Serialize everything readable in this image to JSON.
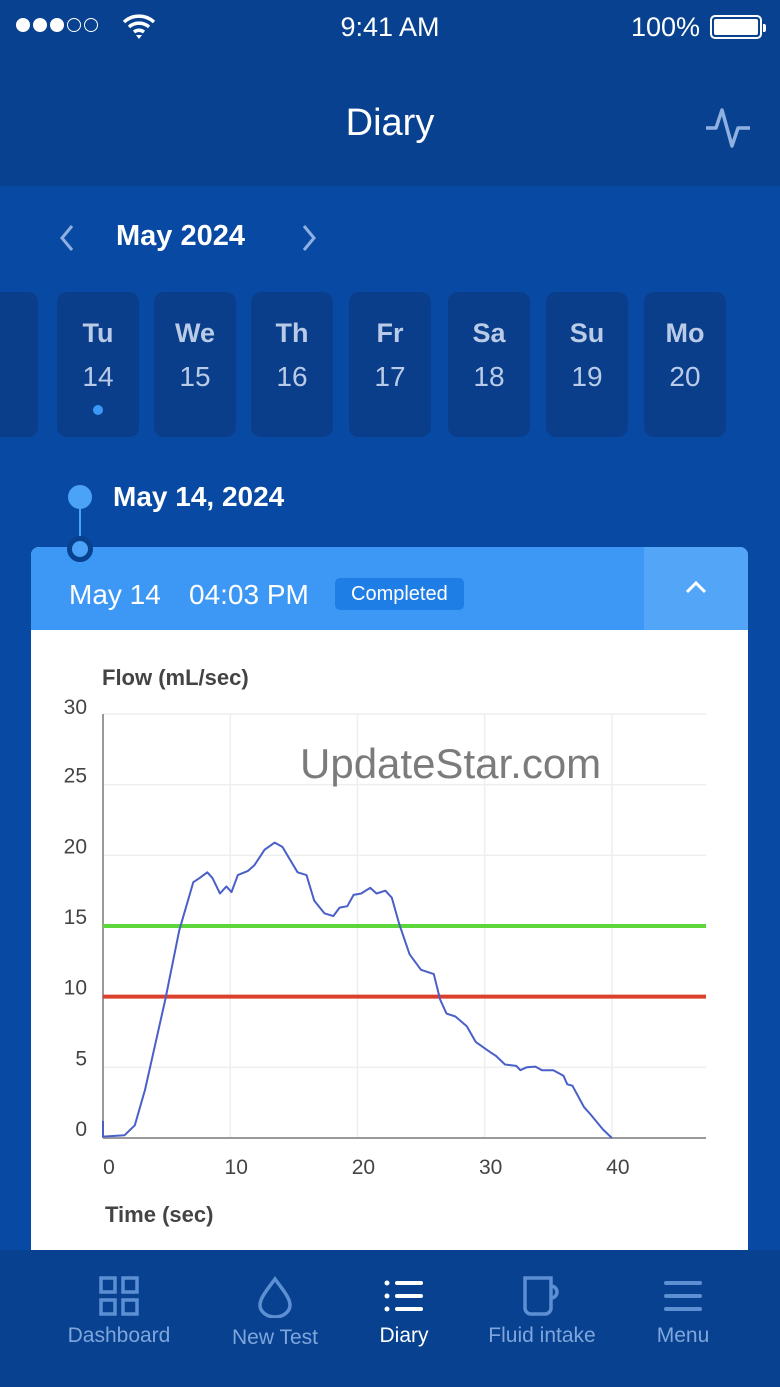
{
  "status_bar": {
    "time": "9:41 AM",
    "battery": "100%",
    "signal_bars": 3,
    "signal_total": 5
  },
  "header": {
    "title": "Diary",
    "action_icon": "pulse-icon"
  },
  "calendar": {
    "month": "May 2024",
    "days": [
      {
        "name": "Tu",
        "date": "14",
        "has_entry": true,
        "selected": true
      },
      {
        "name": "We",
        "date": "15"
      },
      {
        "name": "Th",
        "date": "16"
      },
      {
        "name": "Fr",
        "date": "17"
      },
      {
        "name": "Sa",
        "date": "18"
      },
      {
        "name": "Su",
        "date": "19"
      },
      {
        "name": "Mo",
        "date": "20"
      }
    ]
  },
  "timeline": {
    "date": "May 14, 2024"
  },
  "entry": {
    "date": "May 14",
    "time": "04:03 PM",
    "status": "Completed",
    "colors": {
      "header": "#3d98f5",
      "badge": "#1e7ee6"
    }
  },
  "watermark": "UpdateStar.com",
  "chart_data": {
    "type": "line",
    "ylabel": "Flow (mL/sec)",
    "xlabel": "Time (sec)",
    "xlim": [
      0,
      47.4
    ],
    "ylim": [
      0,
      30
    ],
    "xticks": [
      "0",
      "10",
      "20",
      "30",
      "40"
    ],
    "yticks": [
      "0",
      "5",
      "10",
      "15",
      "20",
      "25",
      "30"
    ],
    "grid": true,
    "reference_lines": [
      {
        "y": 15,
        "color": "#5cd63a"
      },
      {
        "y": 10,
        "color": "#d9412e"
      }
    ],
    "series": [
      {
        "color": "#4a5fc8",
        "points": [
          [
            0,
            1.2
          ],
          [
            0,
            0.1
          ],
          [
            1.7,
            0.2
          ],
          [
            2.5,
            0.9
          ],
          [
            3.3,
            3.4
          ],
          [
            4.9,
            9.8
          ],
          [
            6,
            14.7
          ],
          [
            7.1,
            18.1
          ],
          [
            7.6,
            18.4
          ],
          [
            8.2,
            18.8
          ],
          [
            8.6,
            18.4
          ],
          [
            9.2,
            17.3
          ],
          [
            9.7,
            17.8
          ],
          [
            10.1,
            17.4
          ],
          [
            10.6,
            18.6
          ],
          [
            11.4,
            18.9
          ],
          [
            11.9,
            19.3
          ],
          [
            12.7,
            20.4
          ],
          [
            13.5,
            20.9
          ],
          [
            14.1,
            20.6
          ],
          [
            14.7,
            19.7
          ],
          [
            15.3,
            18.8
          ],
          [
            16,
            18.6
          ],
          [
            16.6,
            16.8
          ],
          [
            17.4,
            15.9
          ],
          [
            18.1,
            15.7
          ],
          [
            18.6,
            16.3
          ],
          [
            19.2,
            16.4
          ],
          [
            19.7,
            17.2
          ],
          [
            20.3,
            17.3
          ],
          [
            21,
            17.7
          ],
          [
            21.5,
            17.3
          ],
          [
            22.2,
            17.5
          ],
          [
            22.7,
            17
          ],
          [
            23.3,
            15.1
          ],
          [
            24.1,
            13
          ],
          [
            25,
            11.9
          ],
          [
            26,
            11.6
          ],
          [
            26.5,
            9.8
          ],
          [
            27,
            8.8
          ],
          [
            27.7,
            8.6
          ],
          [
            28.6,
            7.9
          ],
          [
            29.3,
            6.8
          ],
          [
            30.4,
            6.1
          ],
          [
            30.9,
            5.8
          ],
          [
            31.6,
            5.2
          ],
          [
            32.5,
            5.1
          ],
          [
            32.8,
            4.8
          ],
          [
            33.3,
            5
          ],
          [
            34,
            5.05
          ],
          [
            34.5,
            4.8
          ],
          [
            35.4,
            4.8
          ],
          [
            36.2,
            4.4
          ],
          [
            36.5,
            3.8
          ],
          [
            36.9,
            3.7
          ],
          [
            37.8,
            2.2
          ],
          [
            38.3,
            1.7
          ],
          [
            39.3,
            0.6
          ],
          [
            40,
            0
          ]
        ]
      }
    ]
  },
  "nav": {
    "items": [
      {
        "label": "Dashboard",
        "icon": "grid-icon"
      },
      {
        "label": "New Test",
        "icon": "drop-icon"
      },
      {
        "label": "Diary",
        "icon": "list-icon",
        "active": true
      },
      {
        "label": "Fluid intake",
        "icon": "mug-icon"
      },
      {
        "label": "Menu",
        "icon": "hamburger-icon"
      }
    ]
  }
}
